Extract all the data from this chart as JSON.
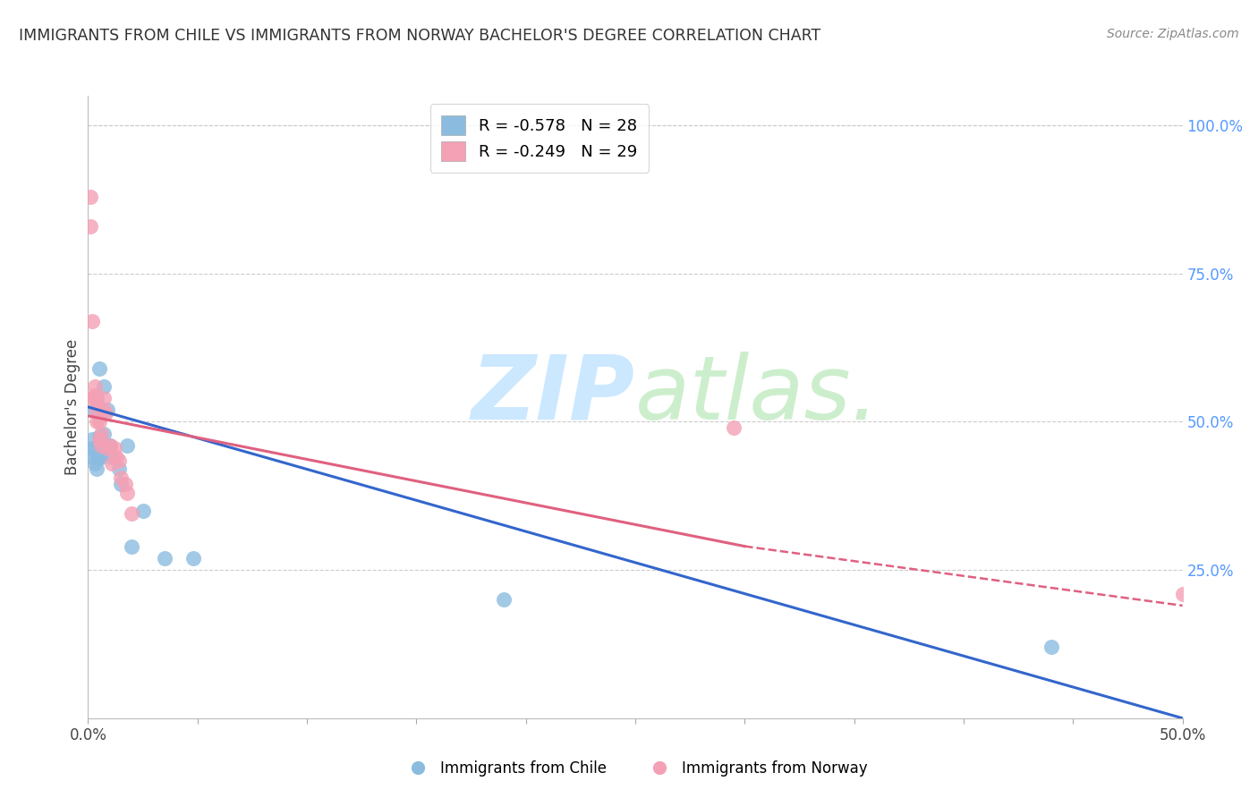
{
  "title": "IMMIGRANTS FROM CHILE VS IMMIGRANTS FROM NORWAY BACHELOR'S DEGREE CORRELATION CHART",
  "source": "Source: ZipAtlas.com",
  "ylabel": "Bachelor's Degree",
  "right_yticks": [
    "100.0%",
    "75.0%",
    "50.0%",
    "25.0%"
  ],
  "right_ytick_vals": [
    1.0,
    0.75,
    0.5,
    0.25
  ],
  "xlim": [
    0.0,
    0.5
  ],
  "ylim": [
    0.0,
    1.05
  ],
  "legend_r_chile": "R = -0.578",
  "legend_n_chile": "N = 28",
  "legend_r_norway": "R = -0.249",
  "legend_n_norway": "N = 29",
  "chile_color": "#8BBCDF",
  "norway_color": "#F4A0B5",
  "trendline_chile_color": "#3366CC",
  "trendline_norway_color": "#E06080",
  "chile_x": [
    0.002,
    0.002,
    0.002,
    0.003,
    0.003,
    0.003,
    0.004,
    0.004,
    0.004,
    0.005,
    0.005,
    0.005,
    0.006,
    0.007,
    0.007,
    0.008,
    0.009,
    0.01,
    0.011,
    0.014,
    0.015,
    0.018,
    0.02,
    0.025,
    0.035,
    0.048,
    0.19,
    0.44
  ],
  "chile_y": [
    0.44,
    0.455,
    0.47,
    0.43,
    0.455,
    0.52,
    0.42,
    0.54,
    0.44,
    0.475,
    0.44,
    0.59,
    0.44,
    0.48,
    0.56,
    0.46,
    0.52,
    0.46,
    0.44,
    0.42,
    0.395,
    0.46,
    0.29,
    0.35,
    0.27,
    0.27,
    0.2,
    0.12
  ],
  "norway_x": [
    0.001,
    0.001,
    0.002,
    0.002,
    0.003,
    0.003,
    0.003,
    0.004,
    0.004,
    0.004,
    0.005,
    0.005,
    0.006,
    0.006,
    0.007,
    0.007,
    0.008,
    0.009,
    0.01,
    0.011,
    0.012,
    0.013,
    0.014,
    0.015,
    0.017,
    0.018,
    0.02,
    0.295,
    0.5
  ],
  "norway_y": [
    0.88,
    0.83,
    0.67,
    0.54,
    0.56,
    0.545,
    0.54,
    0.535,
    0.52,
    0.5,
    0.5,
    0.47,
    0.48,
    0.46,
    0.54,
    0.52,
    0.515,
    0.455,
    0.46,
    0.43,
    0.455,
    0.44,
    0.435,
    0.405,
    0.395,
    0.38,
    0.345,
    0.49,
    0.21
  ],
  "trendline_chile_x0": 0.0,
  "trendline_chile_y0": 0.525,
  "trendline_chile_x1": 0.5,
  "trendline_chile_y1": 0.0,
  "trendline_norway_solid_x0": 0.0,
  "trendline_norway_solid_y0": 0.51,
  "trendline_norway_solid_x1": 0.3,
  "trendline_norway_solid_y1": 0.29,
  "trendline_norway_dashed_x0": 0.3,
  "trendline_norway_dashed_y0": 0.29,
  "trendline_norway_dashed_x1": 0.5,
  "trendline_norway_dashed_y1": 0.19,
  "background_color": "#ffffff",
  "grid_color": "#cccccc"
}
